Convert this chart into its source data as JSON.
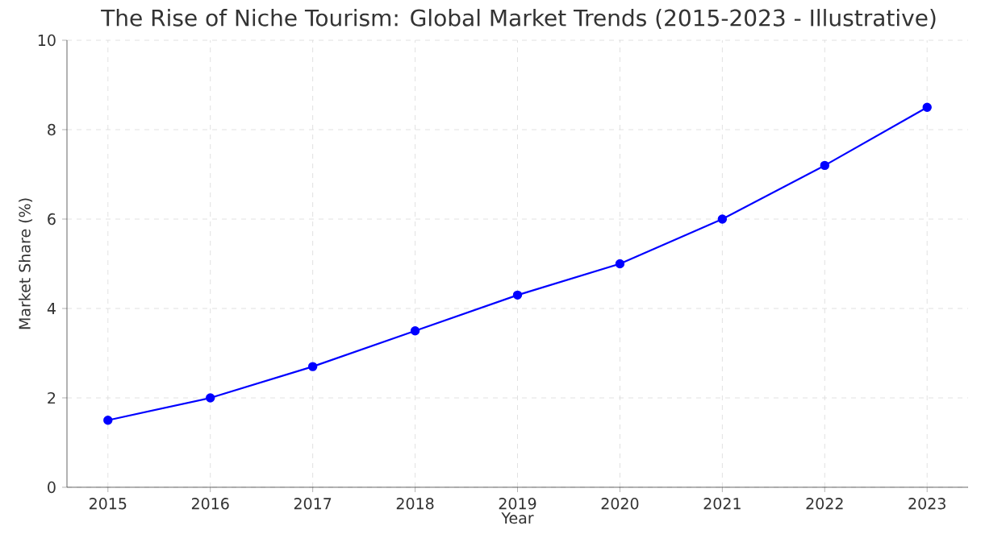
{
  "chart_data": {
    "type": "line",
    "title": "The Rise of Niche Tourism: Global Market Trends (2015-2023 - Illustrative)",
    "xlabel": "Year",
    "ylabel": "Market Share (%)",
    "x": [
      2015,
      2016,
      2017,
      2018,
      2019,
      2020,
      2021,
      2022,
      2023
    ],
    "series": [
      {
        "color": "#0000ff",
        "values": [
          1.5,
          2.0,
          2.7,
          3.5,
          4.3,
          5.0,
          6.0,
          7.2,
          8.5
        ]
      }
    ],
    "xlim": [
      2014.6,
      2023.4
    ],
    "ylim": [
      0,
      10
    ],
    "xticks": [
      2015,
      2016,
      2017,
      2018,
      2019,
      2020,
      2021,
      2022,
      2023
    ],
    "yticks": [
      0,
      2,
      4,
      6,
      8,
      10
    ],
    "grid": true,
    "marker": "circle",
    "line_style": "solid"
  }
}
